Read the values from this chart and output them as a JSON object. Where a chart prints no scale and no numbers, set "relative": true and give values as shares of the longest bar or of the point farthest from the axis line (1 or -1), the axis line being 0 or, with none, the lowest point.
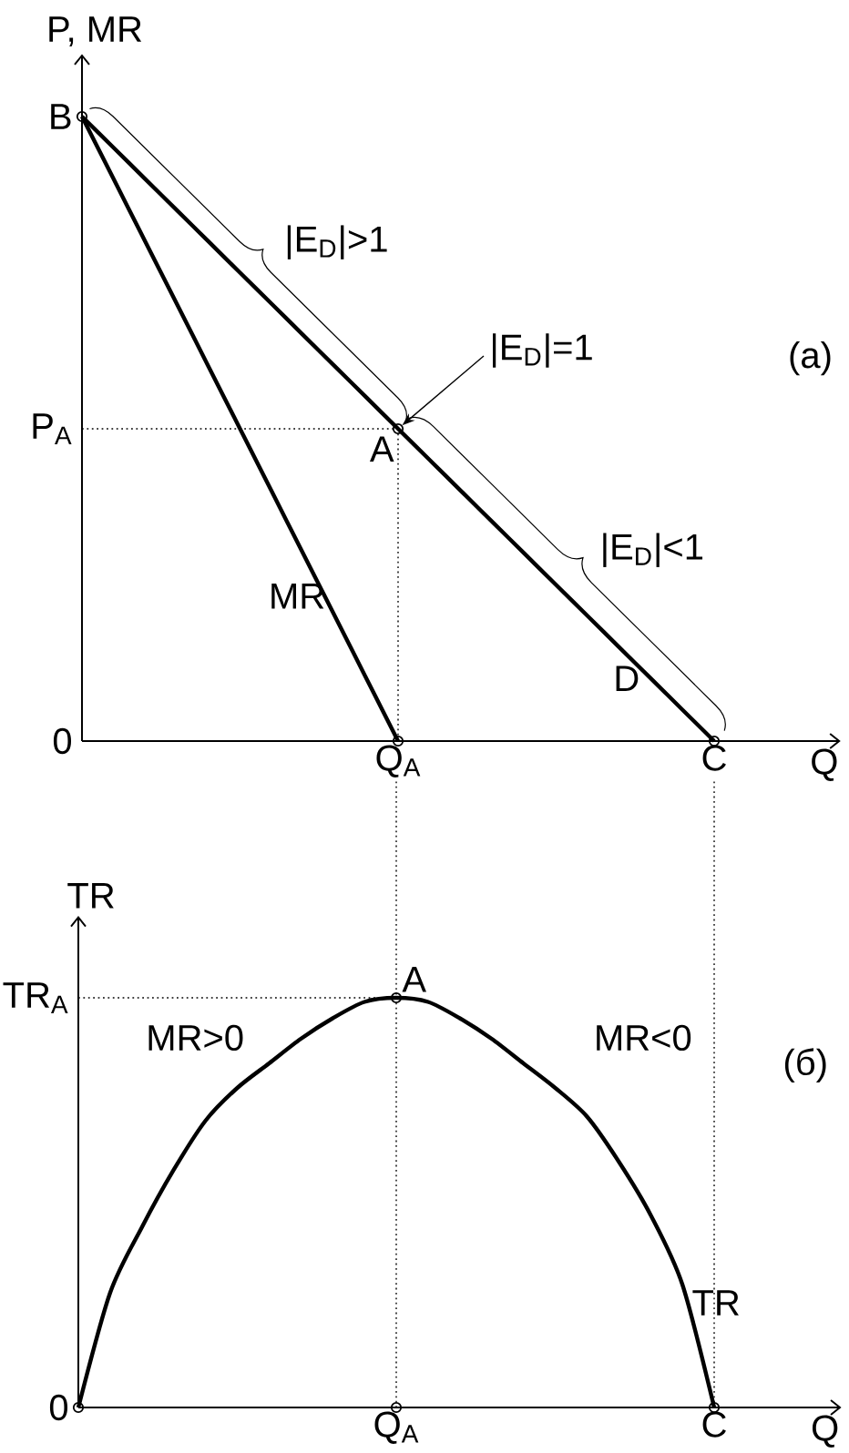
{
  "chart_data": [
    {
      "type": "line",
      "relative": true,
      "xlabel": "Q",
      "ylabel": "P, MR",
      "categories": [
        null,
        null,
        null,
        null,
        null,
        null,
        null,
        null,
        null,
        null,
        null,
        null,
        null,
        null,
        null,
        null,
        null,
        null,
        null,
        null,
        "Q$_{A}$",
        null,
        null,
        null,
        null,
        null,
        null,
        null,
        null,
        null,
        null,
        null,
        null,
        null,
        null,
        null,
        null,
        null,
        null,
        null,
        "C"
      ],
      "series": [
        {
          "type": "scatter",
          "color": "#000000",
          "values": [
            1,
            null,
            null,
            null,
            null,
            null,
            null,
            null,
            null,
            null,
            null,
            null,
            null,
            null,
            null,
            null,
            null,
            null,
            null,
            null,
            0.5,
            null,
            null,
            null,
            null,
            null,
            null,
            null,
            null,
            null,
            null,
            null,
            null,
            null,
            null,
            null,
            null,
            null,
            null,
            null,
            0
          ],
          "marker": "circle"
        },
        {
          "type": "scatter",
          "color": "#000000",
          "x": [
            "Q$_{A}$"
          ],
          "values": [
            0
          ],
          "marker": "circle"
        },
        {
          "color": "#000000",
          "values": [
            0.5,
            0.5,
            0.5,
            0.5,
            0.5,
            0.5,
            0.5,
            0.5,
            0.5,
            0.5,
            0.5,
            0.5,
            0.5,
            0.5,
            0.5,
            0.5,
            0.5,
            0.5,
            0.5,
            0.5,
            0.5,
            null,
            null,
            null,
            null,
            null,
            null,
            null,
            null,
            null,
            null,
            null,
            null,
            null,
            null,
            null,
            null,
            null,
            null,
            null,
            null
          ],
          "line_style": "dotted"
        },
        {
          "color": "#000000",
          "x": [
            "Q$_{A}$",
            "Q$_{A}$"
          ],
          "values": [
            0.5,
            0
          ],
          "line_style": "dotted"
        },
        {
          "name": "D",
          "color": "#000000",
          "values": [
            1,
            0.975,
            0.95,
            0.925,
            0.9,
            0.875,
            0.85,
            0.825,
            0.8,
            0.775,
            0.75,
            0.725,
            0.7,
            0.675,
            0.65,
            0.625,
            0.6,
            0.575,
            0.55,
            0.525,
            0.5,
            0.475,
            0.45,
            0.425,
            0.4,
            0.375,
            0.35,
            0.325,
            0.3,
            0.275,
            0.25,
            0.225,
            0.2,
            0.175,
            0.15,
            0.125,
            0.1,
            0.075,
            0.05,
            0.025,
            0
          ]
        },
        {
          "name": "MR",
          "color": "#000000",
          "values": [
            1,
            0.95,
            0.9,
            0.85,
            0.8,
            0.75,
            0.7,
            0.65,
            0.6,
            0.55,
            0.5,
            0.45,
            0.4,
            0.35,
            0.3,
            0.25,
            0.2,
            0.15,
            0.1,
            0.05,
            0,
            null,
            null,
            null,
            null,
            null,
            null,
            null,
            null,
            null,
            null,
            null,
            null,
            null,
            null,
            null,
            null,
            null,
            null,
            null,
            null
          ]
        }
      ],
      "annotations": [
        "B",
        {
          "text": "A",
          "x": "Q$_{A}$",
          "y": 0.5
        },
        "|E$_{D}$|>1",
        {
          "text": "|E$_{D}$|=1",
          "x": "Q$_{A}$",
          "y": 0.5
        },
        "|E$_{D}$|<1",
        "(а)",
        "P$_{A}$",
        "0"
      ]
    },
    {
      "type": "line",
      "relative": true,
      "xlabel": "Q",
      "ylabel": "TR",
      "categories": [
        null,
        null,
        null,
        null,
        null,
        null,
        null,
        null,
        null,
        null,
        "Q$_{A}$",
        null,
        null,
        null,
        null,
        null,
        null,
        null,
        null,
        null,
        "C"
      ],
      "series": [
        {
          "type": "scatter",
          "color": "#000000",
          "values": [
            0,
            null,
            null,
            null,
            null,
            null,
            null,
            null,
            null,
            null,
            1,
            null,
            null,
            null,
            null,
            null,
            null,
            null,
            null,
            null,
            0
          ],
          "marker": "circle"
        },
        {
          "type": "scatter",
          "color": "#000000",
          "x": [
            "Q$_{A}$"
          ],
          "values": [
            0
          ],
          "marker": "circle"
        },
        {
          "color": "#000000",
          "values": [
            1,
            1,
            1,
            1,
            1,
            1,
            1,
            1,
            1,
            1,
            1,
            null,
            null,
            null,
            null,
            null,
            null,
            null,
            null,
            null,
            null
          ],
          "line_style": "dotted"
        },
        {
          "name": "TR",
          "color": "#000000",
          "values": [
            0,
            0.28,
            0.44,
            0.58,
            0.7,
            0.78,
            0.84,
            0.9,
            0.95,
            0.99,
            1,
            0.99,
            0.95,
            0.9,
            0.84,
            0.78,
            0.71,
            0.6,
            0.47,
            0.3,
            0
          ]
        }
      ],
      "ref_lines": [
        {
          "axis": "x",
          "value": "Q$_{A}$",
          "color": "#000000",
          "line_style": "dotted"
        },
        {
          "axis": "x",
          "value": "C",
          "color": "#000000",
          "line_style": "dotted"
        }
      ],
      "annotations": [
        {
          "text": "A",
          "x": "Q$_{A}$",
          "y": 1
        },
        "MR>0",
        "MR<0",
        "(б)",
        "TR$_{A}$",
        "0"
      ]
    }
  ]
}
